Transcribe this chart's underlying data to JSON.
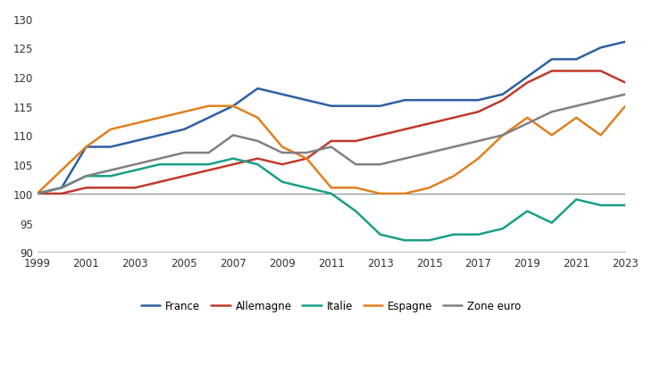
{
  "years": [
    1999,
    2000,
    2001,
    2002,
    2003,
    2004,
    2005,
    2006,
    2007,
    2008,
    2009,
    2010,
    2011,
    2012,
    2013,
    2014,
    2015,
    2016,
    2017,
    2018,
    2019,
    2020,
    2021,
    2022,
    2023
  ],
  "France": [
    100,
    101,
    108,
    108,
    109,
    110,
    111,
    113,
    115,
    118,
    117,
    116,
    115,
    115,
    115,
    116,
    116,
    116,
    116,
    117,
    120,
    123,
    123,
    125,
    126
  ],
  "Allemagne": [
    100,
    100,
    101,
    101,
    101,
    102,
    103,
    104,
    105,
    106,
    105,
    106,
    109,
    109,
    110,
    111,
    112,
    113,
    114,
    116,
    119,
    121,
    121,
    121,
    119
  ],
  "Italie": [
    100,
    101,
    103,
    103,
    104,
    105,
    105,
    105,
    106,
    105,
    102,
    101,
    100,
    97,
    93,
    92,
    92,
    93,
    93,
    94,
    97,
    95,
    99,
    98,
    98
  ],
  "Espagne": [
    100,
    104,
    108,
    111,
    112,
    113,
    114,
    115,
    115,
    113,
    108,
    106,
    101,
    101,
    100,
    100,
    101,
    103,
    106,
    110,
    113,
    110,
    113,
    110,
    115
  ],
  "Zone euro": [
    100,
    101,
    103,
    104,
    105,
    106,
    107,
    107,
    110,
    109,
    107,
    107,
    108,
    105,
    105,
    106,
    107,
    108,
    109,
    110,
    112,
    114,
    115,
    116,
    117
  ],
  "colors": {
    "France": "#2E5FA3",
    "Allemagne": "#C0392B",
    "Italie": "#1A9E88",
    "Espagne": "#E08020",
    "Zone euro": "#808080"
  },
  "linewidth": 1.8,
  "ylim": [
    90,
    131
  ],
  "yticks": [
    90,
    95,
    100,
    105,
    110,
    115,
    120,
    125,
    130
  ],
  "xticks": [
    1999,
    2001,
    2003,
    2005,
    2007,
    2009,
    2011,
    2013,
    2015,
    2017,
    2019,
    2021,
    2023
  ],
  "hline_y": 100,
  "hline_color": "#888888",
  "background_color": "#FFFFFF",
  "legend_order": [
    "France",
    "Allemagne",
    "Italie",
    "Espagne",
    "Zone euro"
  ]
}
